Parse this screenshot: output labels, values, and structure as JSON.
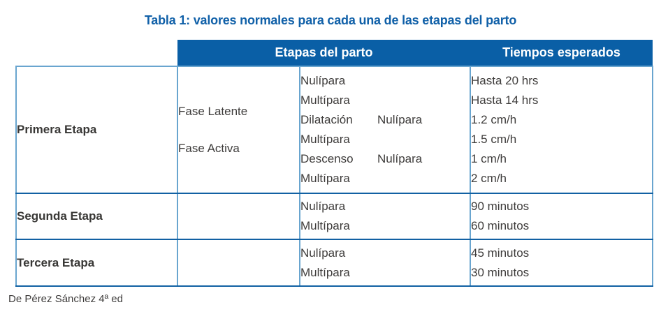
{
  "title": "Tabla 1: valores normales para cada una de las etapas del parto",
  "colors": {
    "header_bg": "#0A5FA6",
    "title_text": "#1060A8",
    "border_light": "#69A5CF",
    "border_dark": "#1261A3",
    "body_text": "#3E3C3B"
  },
  "table": {
    "header": {
      "etapas": "Etapas del parto",
      "tiempos": "Tiempos esperados"
    },
    "rows": [
      {
        "etapa": "Primera Etapa",
        "fases": [
          "Fase Latente",
          "Fase Activa"
        ],
        "detalle": [
          {
            "text": "Nulípara"
          },
          {
            "text": "Multípara"
          },
          {
            "label": "Dilatación",
            "text": "Nulípara"
          },
          {
            "text": "Multípara"
          },
          {
            "label": "Descenso",
            "text": "Nulípara"
          },
          {
            "text": "Multípara"
          }
        ],
        "tiempos": [
          "Hasta 20 hrs",
          "Hasta 14 hrs",
          "1.2 cm/h",
          "1.5 cm/h",
          "1 cm/h",
          "2 cm/h"
        ]
      },
      {
        "etapa": "Segunda Etapa",
        "detalle": [
          {
            "text": "Nulípara"
          },
          {
            "text": "Multípara"
          }
        ],
        "tiempos": [
          "90 minutos",
          "60 minutos"
        ]
      },
      {
        "etapa": "Tercera Etapa",
        "detalle": [
          {
            "text": "Nulípara"
          },
          {
            "text": "Multípara"
          }
        ],
        "tiempos": [
          "45 minutos",
          "30 minutos"
        ]
      }
    ]
  },
  "footer": "De Pérez Sánchez 4ª ed"
}
